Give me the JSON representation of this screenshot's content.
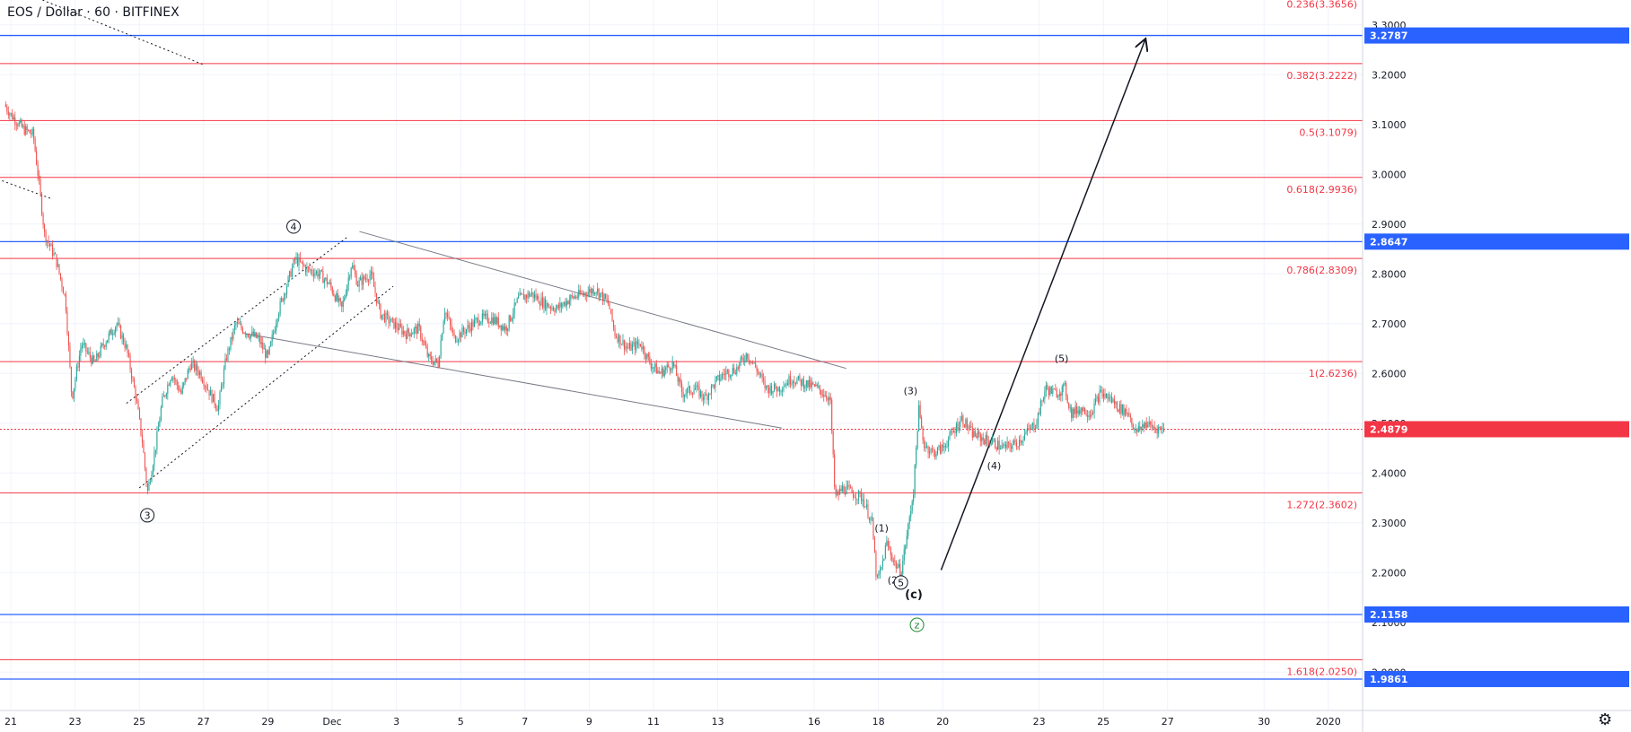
{
  "header": {
    "symbol_title": "EOS / Dollar · 60 · BITFINEX"
  },
  "colors": {
    "up": "#26a69a",
    "down": "#ef5350",
    "fib": "#f23645",
    "level": "#2962ff",
    "grid": "#f0f3fa",
    "text": "#131722"
  },
  "icons": {
    "settings": "gear-icon"
  },
  "chart_data": {
    "type": "candlestick",
    "title": "EOS / Dollar · 60 · BITFINEX",
    "ylim": [
      1.955,
      3.35
    ],
    "y_ticks": [
      "3.3000",
      "3.2000",
      "3.1000",
      "3.0000",
      "2.9000",
      "2.8000",
      "2.7000",
      "2.6000",
      "2.5000",
      "2.4000",
      "2.3000",
      "2.2000",
      "2.1000",
      "2.0000"
    ],
    "y_tick_values": [
      3.3,
      3.2,
      3.1,
      3.0,
      2.9,
      2.8,
      2.7,
      2.6,
      2.5,
      2.4,
      2.3,
      2.2,
      2.1,
      2.0
    ],
    "x_ticks": [
      "21",
      "23",
      "25",
      "27",
      "29",
      "Dec",
      "3",
      "5",
      "7",
      "9",
      "11",
      "13",
      "16",
      "18",
      "20",
      "23",
      "25",
      "27",
      "30",
      "2020"
    ],
    "x_tick_days": [
      0,
      2,
      4,
      6,
      8,
      10,
      12,
      14,
      16,
      18,
      20,
      22,
      25,
      27,
      29,
      32,
      34,
      36,
      39,
      41
    ],
    "current_price": {
      "value": 2.4879,
      "label": "2.4879"
    },
    "horizontal_levels": [
      {
        "value": 3.2787,
        "label": "3.2787"
      },
      {
        "value": 2.8647,
        "label": "2.8647"
      },
      {
        "value": 2.1158,
        "label": "2.1158"
      },
      {
        "value": 1.9861,
        "label": "1.9861"
      }
    ],
    "fib_levels": [
      {
        "value": 3.3656,
        "label": "0.236(3.3656)"
      },
      {
        "value": 3.2222,
        "label": "0.382(3.2222)"
      },
      {
        "value": 3.1079,
        "label": "0.5(3.1079)"
      },
      {
        "value": 2.9936,
        "label": "0.618(2.9936)"
      },
      {
        "value": 2.8309,
        "label": "0.786(2.8309)"
      },
      {
        "value": 2.6236,
        "label": "1(2.6236)"
      },
      {
        "value": 2.3602,
        "label": "1.272(2.3602)"
      },
      {
        "value": 2.025,
        "label": "1.618(2.0250)"
      }
    ],
    "price_path": [
      {
        "day": -0.2,
        "price": 3.14
      },
      {
        "day": 0.0,
        "price": 3.12
      },
      {
        "day": 0.4,
        "price": 3.09
      },
      {
        "day": 0.7,
        "price": 3.08
      },
      {
        "day": 0.9,
        "price": 2.97
      },
      {
        "day": 1.05,
        "price": 2.88
      },
      {
        "day": 1.4,
        "price": 2.83
      },
      {
        "day": 1.7,
        "price": 2.75
      },
      {
        "day": 1.9,
        "price": 2.55
      },
      {
        "day": 2.2,
        "price": 2.66
      },
      {
        "day": 2.6,
        "price": 2.62
      },
      {
        "day": 2.9,
        "price": 2.66
      },
      {
        "day": 3.3,
        "price": 2.7
      },
      {
        "day": 3.6,
        "price": 2.65
      },
      {
        "day": 3.9,
        "price": 2.55
      },
      {
        "day": 4.1,
        "price": 2.46
      },
      {
        "day": 4.25,
        "price": 2.36
      },
      {
        "day": 4.5,
        "price": 2.45
      },
      {
        "day": 4.7,
        "price": 2.54
      },
      {
        "day": 5.0,
        "price": 2.6
      },
      {
        "day": 5.3,
        "price": 2.56
      },
      {
        "day": 5.6,
        "price": 2.62
      },
      {
        "day": 5.9,
        "price": 2.6
      },
      {
        "day": 6.2,
        "price": 2.56
      },
      {
        "day": 6.45,
        "price": 2.53
      },
      {
        "day": 6.7,
        "price": 2.63
      },
      {
        "day": 7.0,
        "price": 2.7
      },
      {
        "day": 7.4,
        "price": 2.68
      },
      {
        "day": 7.7,
        "price": 2.67
      },
      {
        "day": 8.0,
        "price": 2.63
      },
      {
        "day": 8.3,
        "price": 2.72
      },
      {
        "day": 8.6,
        "price": 2.78
      },
      {
        "day": 8.85,
        "price": 2.83
      },
      {
        "day": 9.2,
        "price": 2.81
      },
      {
        "day": 9.6,
        "price": 2.8
      },
      {
        "day": 9.9,
        "price": 2.78
      },
      {
        "day": 10.3,
        "price": 2.73
      },
      {
        "day": 10.6,
        "price": 2.82
      },
      {
        "day": 10.8,
        "price": 2.78
      },
      {
        "day": 11.2,
        "price": 2.8
      },
      {
        "day": 11.5,
        "price": 2.72
      },
      {
        "day": 11.9,
        "price": 2.7
      },
      {
        "day": 12.3,
        "price": 2.68
      },
      {
        "day": 12.7,
        "price": 2.69
      },
      {
        "day": 13.0,
        "price": 2.63
      },
      {
        "day": 13.3,
        "price": 2.62
      },
      {
        "day": 13.5,
        "price": 2.73
      },
      {
        "day": 13.8,
        "price": 2.67
      },
      {
        "day": 14.2,
        "price": 2.69
      },
      {
        "day": 14.6,
        "price": 2.71
      },
      {
        "day": 15.0,
        "price": 2.71
      },
      {
        "day": 15.4,
        "price": 2.69
      },
      {
        "day": 15.8,
        "price": 2.75
      },
      {
        "day": 16.2,
        "price": 2.76
      },
      {
        "day": 16.6,
        "price": 2.74
      },
      {
        "day": 17.0,
        "price": 2.73
      },
      {
        "day": 17.4,
        "price": 2.75
      },
      {
        "day": 17.8,
        "price": 2.76
      },
      {
        "day": 18.2,
        "price": 2.77
      },
      {
        "day": 18.6,
        "price": 2.74
      },
      {
        "day": 18.8,
        "price": 2.68
      },
      {
        "day": 19.2,
        "price": 2.65
      },
      {
        "day": 19.6,
        "price": 2.66
      },
      {
        "day": 19.9,
        "price": 2.62
      },
      {
        "day": 20.2,
        "price": 2.6
      },
      {
        "day": 20.6,
        "price": 2.62
      },
      {
        "day": 20.9,
        "price": 2.56
      },
      {
        "day": 21.3,
        "price": 2.57
      },
      {
        "day": 21.6,
        "price": 2.55
      },
      {
        "day": 21.9,
        "price": 2.58
      },
      {
        "day": 22.2,
        "price": 2.6
      },
      {
        "day": 22.6,
        "price": 2.61
      },
      {
        "day": 22.9,
        "price": 2.64
      },
      {
        "day": 23.2,
        "price": 2.61
      },
      {
        "day": 23.5,
        "price": 2.57
      },
      {
        "day": 23.9,
        "price": 2.57
      },
      {
        "day": 24.3,
        "price": 2.59
      },
      {
        "day": 24.7,
        "price": 2.58
      },
      {
        "day": 25.1,
        "price": 2.57
      },
      {
        "day": 25.5,
        "price": 2.55
      },
      {
        "day": 25.65,
        "price": 2.35
      },
      {
        "day": 25.9,
        "price": 2.37
      },
      {
        "day": 26.2,
        "price": 2.36
      },
      {
        "day": 26.5,
        "price": 2.35
      },
      {
        "day": 26.8,
        "price": 2.3
      },
      {
        "day": 26.95,
        "price": 2.18
      },
      {
        "day": 27.1,
        "price": 2.21
      },
      {
        "day": 27.25,
        "price": 2.26
      },
      {
        "day": 27.5,
        "price": 2.22
      },
      {
        "day": 27.7,
        "price": 2.2
      },
      {
        "day": 27.9,
        "price": 2.28
      },
      {
        "day": 28.1,
        "price": 2.37
      },
      {
        "day": 28.25,
        "price": 2.53
      },
      {
        "day": 28.4,
        "price": 2.46
      },
      {
        "day": 28.7,
        "price": 2.44
      },
      {
        "day": 29.0,
        "price": 2.45
      },
      {
        "day": 29.3,
        "price": 2.48
      },
      {
        "day": 29.6,
        "price": 2.51
      },
      {
        "day": 29.9,
        "price": 2.48
      },
      {
        "day": 30.2,
        "price": 2.47
      },
      {
        "day": 30.6,
        "price": 2.46
      },
      {
        "day": 30.9,
        "price": 2.45
      },
      {
        "day": 31.3,
        "price": 2.46
      },
      {
        "day": 31.6,
        "price": 2.48
      },
      {
        "day": 31.9,
        "price": 2.5
      },
      {
        "day": 32.2,
        "price": 2.57
      },
      {
        "day": 32.5,
        "price": 2.56
      },
      {
        "day": 32.8,
        "price": 2.57
      },
      {
        "day": 33.0,
        "price": 2.52
      },
      {
        "day": 33.3,
        "price": 2.53
      },
      {
        "day": 33.6,
        "price": 2.52
      },
      {
        "day": 33.9,
        "price": 2.56
      },
      {
        "day": 34.2,
        "price": 2.55
      },
      {
        "day": 34.5,
        "price": 2.53
      },
      {
        "day": 34.8,
        "price": 2.52
      },
      {
        "day": 35.0,
        "price": 2.48
      },
      {
        "day": 35.3,
        "price": 2.5
      },
      {
        "day": 35.6,
        "price": 2.49
      },
      {
        "day": 35.9,
        "price": 2.4879
      }
    ],
    "trendlines": [
      {
        "from": {
          "day": 10.85,
          "price": 2.885
        },
        "to": {
          "day": 26.0,
          "price": 2.61
        },
        "color": "#787b86",
        "style": "solid"
      },
      {
        "from": {
          "day": 7.3,
          "price": 2.68
        },
        "to": {
          "day": 24.0,
          "price": 2.49
        },
        "color": "#787b86",
        "style": "solid"
      },
      {
        "from": {
          "day": 3.6,
          "price": 2.54
        },
        "to": {
          "day": 10.5,
          "price": 2.875
        },
        "color": "#131722",
        "style": "dotted"
      },
      {
        "from": {
          "day": 4.0,
          "price": 2.37
        },
        "to": {
          "day": 11.9,
          "price": 2.775
        },
        "color": "#131722",
        "style": "dotted"
      },
      {
        "from": {
          "day": 0.6,
          "price": 3.36
        },
        "to": {
          "day": 6.0,
          "price": 3.22
        },
        "color": "#131722",
        "style": "dotted"
      },
      {
        "from": {
          "day": -0.4,
          "price": 2.99
        },
        "to": {
          "day": 1.3,
          "price": 2.95
        },
        "color": "#131722",
        "style": "dotted"
      },
      {
        "from": {
          "day": 28.95,
          "price": 2.205
        },
        "to": {
          "day": 35.3,
          "price": 3.27
        },
        "color": "#131722",
        "style": "solid",
        "arrow": true
      }
    ],
    "wave_labels": [
      {
        "text": "4",
        "day": 8.8,
        "price": 2.895,
        "circled": true
      },
      {
        "text": "3",
        "day": 4.25,
        "price": 2.315,
        "circled": true
      },
      {
        "text": "(3)",
        "day": 28.0,
        "price": 2.565,
        "circled": false
      },
      {
        "text": "(1)",
        "day": 27.1,
        "price": 2.29,
        "circled": false
      },
      {
        "text": "(2)",
        "day": 27.5,
        "price": 2.185,
        "circled": false
      },
      {
        "text": "(4)",
        "day": 30.6,
        "price": 2.415,
        "circled": false
      },
      {
        "text": "(5)",
        "day": 32.7,
        "price": 2.63,
        "circled": false
      },
      {
        "text": "5",
        "day": 27.7,
        "price": 2.18,
        "circled": true
      },
      {
        "text": "(c)",
        "day": 28.1,
        "price": 2.155,
        "circled": false,
        "bold": true
      },
      {
        "text": "z",
        "day": 28.2,
        "price": 2.095,
        "circled": true,
        "green": true
      }
    ]
  }
}
